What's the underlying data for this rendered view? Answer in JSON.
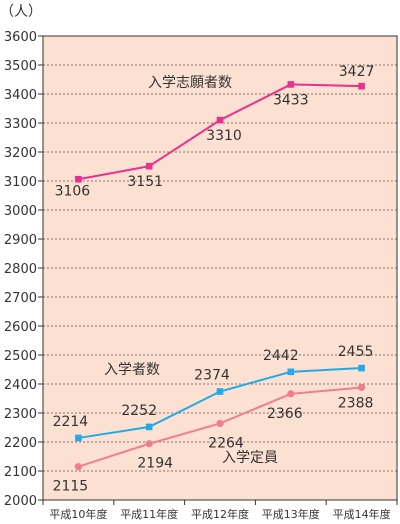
{
  "chart_data": {
    "type": "line",
    "ylabel": "（人）",
    "ylim": [
      2000,
      3600
    ],
    "ystep": 100,
    "grid": true,
    "categories": [
      "平成10年度",
      "平成11年度",
      "平成12年度",
      "平成13年度",
      "平成14年度"
    ],
    "series": [
      {
        "name": "入学志願者数",
        "color": "#e8308c",
        "marker": "square",
        "values": [
          3106,
          3151,
          3310,
          3433,
          3427
        ],
        "labels": [
          "3106",
          "3151",
          "3310",
          "3433",
          "3427"
        ]
      },
      {
        "name": "入学者数",
        "color": "#22aae6",
        "marker": "square",
        "values": [
          2214,
          2252,
          2374,
          2442,
          2455
        ],
        "labels": [
          "2214",
          "2252",
          "2374",
          "2442",
          "2455"
        ]
      },
      {
        "name": "入学定員",
        "color": "#f07f8e",
        "marker": "circle",
        "values": [
          2115,
          2194,
          2264,
          2366,
          2388
        ],
        "labels": [
          "2115",
          "2194",
          "2264",
          "2366",
          "2388"
        ]
      }
    ],
    "colors": {
      "plot_background": "#fce1d2",
      "axis": "#333333",
      "grid": "#555555"
    }
  }
}
